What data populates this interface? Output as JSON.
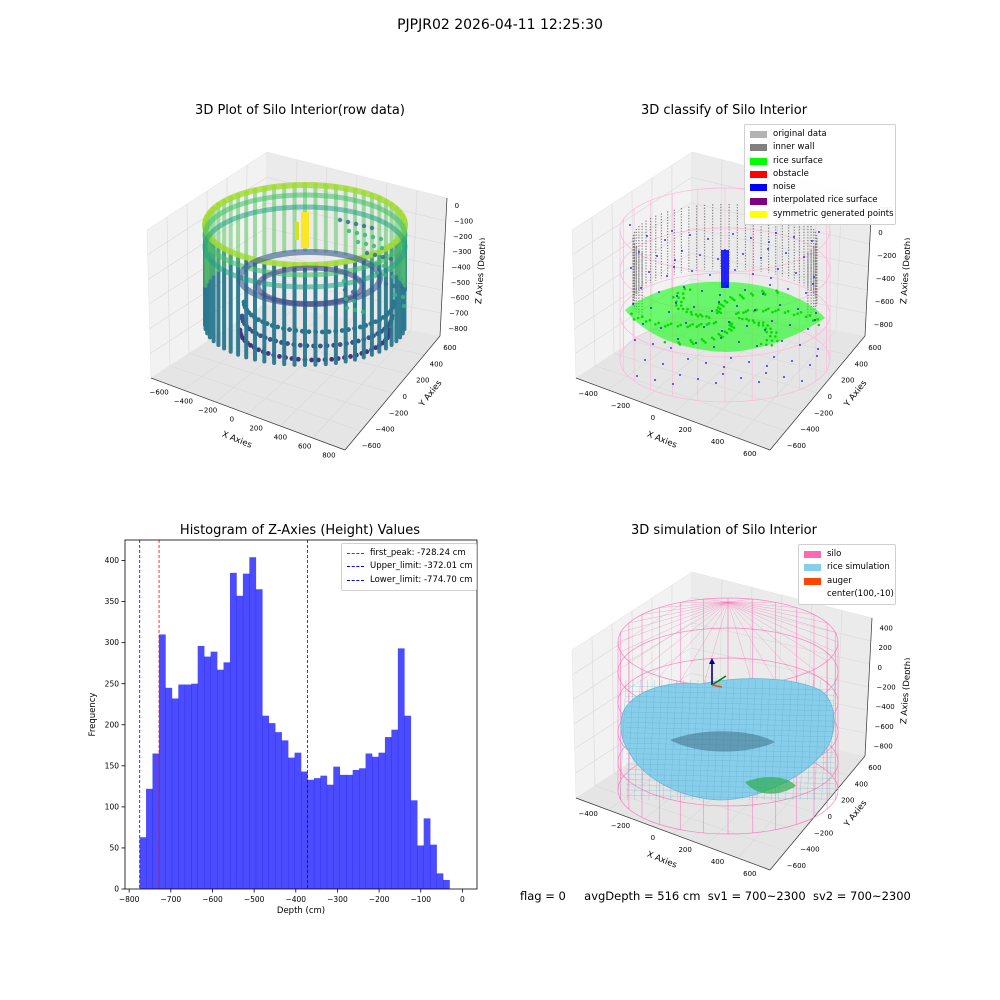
{
  "suptitle": "PJPJR02 2026-04-11 12:25:30",
  "panels": {
    "raw": {
      "title": "3D Plot of Silo Interior(row data)",
      "xlabel": "X Axies",
      "ylabel": "Y Axies",
      "zlabel": "Z Axies (Depth)",
      "xticks": [
        "−600",
        "−400",
        "−200",
        "0",
        "200",
        "400",
        "600",
        "800"
      ],
      "yticks": [
        "−600",
        "−400",
        "−200",
        "0",
        "200",
        "400",
        "600"
      ],
      "zticks": [
        "0",
        "−100",
        "−200",
        "−300",
        "−400",
        "−500",
        "−600",
        "−700",
        "−800"
      ]
    },
    "classify": {
      "title": "3D classify of Silo Interior",
      "xlabel": "X Axies",
      "ylabel": "Y Axies",
      "zlabel": "Z Axies (Depth)",
      "xticks": [
        "−400",
        "−200",
        "0",
        "200",
        "400",
        "600"
      ],
      "yticks": [
        "−600",
        "−400",
        "−200",
        "0",
        "200",
        "400",
        "600"
      ],
      "zticks": [
        "200",
        "0",
        "−200",
        "−400",
        "−600",
        "−800"
      ],
      "legend": [
        {
          "label": "original data",
          "color": "#b3b3b3"
        },
        {
          "label": "inner wall",
          "color": "#808080"
        },
        {
          "label": "rice surface",
          "color": "#00ff00"
        },
        {
          "label": "obstacle",
          "color": "#ff0000"
        },
        {
          "label": "noise",
          "color": "#0000ff"
        },
        {
          "label": "interpolated rice surface",
          "color": "#800080"
        },
        {
          "label": "symmetric generated points",
          "color": "#ffff00"
        }
      ]
    },
    "simulation": {
      "title": "3D simulation of Silo Interior",
      "xlabel": "X Axies",
      "ylabel": "Y Axies",
      "zlabel": "Z Axies (Depth)",
      "xticks": [
        "−400",
        "−200",
        "0",
        "200",
        "400",
        "600"
      ],
      "yticks": [
        "−600",
        "−400",
        "−200",
        "0",
        "200",
        "400",
        "600"
      ],
      "zticks": [
        "400",
        "200",
        "0",
        "−200",
        "−400",
        "−600",
        "−800"
      ],
      "legend": [
        {
          "label": "silo",
          "color": "#ff69b4"
        },
        {
          "label": "rice simulation",
          "color": "#87ceeb"
        },
        {
          "label": "auger",
          "color": "#ff4500"
        },
        {
          "label": "center(100,-10)",
          "color": ""
        }
      ]
    }
  },
  "chart_data": {
    "type": "bar",
    "title": "Histogram of Z-Axies (Height) Values",
    "xlabel": "Depth (cm)",
    "ylabel": "Frequency",
    "xlim": [
      -810,
      35
    ],
    "ylim": [
      0,
      425
    ],
    "xticks": [
      -800,
      -700,
      -600,
      -500,
      -400,
      -300,
      -200,
      -100,
      0
    ],
    "yticks": [
      0,
      50,
      100,
      150,
      200,
      250,
      300,
      350,
      400
    ],
    "bar_color": "#0000ff",
    "bin_start": -775,
    "bin_width": 15.5,
    "values": [
      63,
      122,
      165,
      310,
      245,
      232,
      249,
      249,
      250,
      296,
      283,
      289,
      267,
      276,
      385,
      357,
      384,
      404,
      365,
      211,
      202,
      191,
      181,
      160,
      166,
      143,
      133,
      135,
      138,
      127,
      149,
      139,
      139,
      145,
      147,
      165,
      161,
      166,
      185,
      194,
      293,
      211,
      108,
      53,
      86,
      54,
      19,
      11
    ],
    "lines": [
      {
        "label": "first_peak: -728.24 cm",
        "x": -728.24,
        "color": "#ff0000"
      },
      {
        "label": "Upper_limit: -372.01 cm",
        "x": -372.01,
        "color": "#0000ff"
      },
      {
        "label": "Lower_limit: -774.70 cm",
        "x": -774.7,
        "color": "#0000ff"
      }
    ],
    "legend_position": "top-right"
  },
  "footer": {
    "flag": "flag = 0",
    "avg": "avgDepth = 516 cm",
    "sv1": "sv1 = 700~2300",
    "sv2": "sv2 = 700~2300"
  }
}
